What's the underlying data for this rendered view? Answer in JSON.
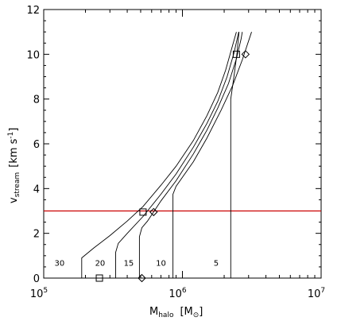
{
  "chart_data": {
    "type": "line",
    "x_scale": "log",
    "xlim": [
      100000,
      10000000
    ],
    "ylim": [
      0,
      12
    ],
    "xlabel": {
      "main": "M",
      "sub": "halo",
      "unit_open": "[M",
      "unit_sub": "⊙",
      "unit_close": "]"
    },
    "ylabel": {
      "main": "v",
      "sub": "stream",
      "unit": "[km s",
      "unit_sup": "-1",
      "unit_close": "]"
    },
    "x_ticks": [
      {
        "value": 100000,
        "base": "10",
        "exp": "5"
      },
      {
        "value": 1000000,
        "base": "10",
        "exp": "6"
      },
      {
        "value": 10000000,
        "base": "10",
        "exp": "7"
      }
    ],
    "y_ticks": [
      {
        "value": 0,
        "label": "0"
      },
      {
        "value": 2,
        "label": "2"
      },
      {
        "value": 4,
        "label": "4"
      },
      {
        "value": 6,
        "label": "6"
      },
      {
        "value": 8,
        "label": "8"
      },
      {
        "value": 10,
        "label": "10"
      },
      {
        "value": 12,
        "label": "12"
      }
    ],
    "series": [
      {
        "name": "30",
        "label_at": [
          130000,
          0.7
        ],
        "points": [
          [
            188000,
            0
          ],
          [
            188000,
            0.9
          ],
          [
            230000,
            1.35
          ],
          [
            300000,
            1.9
          ],
          [
            400000,
            2.55
          ],
          [
            520000,
            3.2
          ],
          [
            700000,
            4.15
          ],
          [
            900000,
            5.0
          ],
          [
            1200000,
            6.15
          ],
          [
            1500000,
            7.25
          ],
          [
            1800000,
            8.3
          ],
          [
            2050000,
            9.3
          ],
          [
            2300000,
            10.4
          ],
          [
            2450000,
            11.0
          ]
        ]
      },
      {
        "name": "20",
        "label_at": [
          255000,
          0.7
        ],
        "points": [
          [
            330000,
            0
          ],
          [
            330000,
            1.15
          ],
          [
            345000,
            1.55
          ],
          [
            400000,
            2.0
          ],
          [
            520000,
            2.75
          ],
          [
            700000,
            3.75
          ],
          [
            900000,
            4.65
          ],
          [
            1200000,
            5.85
          ],
          [
            1500000,
            6.9
          ],
          [
            1800000,
            7.9
          ],
          [
            2100000,
            9.0
          ],
          [
            2350000,
            10.05
          ],
          [
            2550000,
            11.0
          ]
        ]
      },
      {
        "name": "15",
        "label_at": [
          410000,
          0.7
        ],
        "points": [
          [
            490000,
            0
          ],
          [
            490000,
            1.85
          ],
          [
            510000,
            2.25
          ],
          [
            560000,
            2.55
          ],
          [
            700000,
            3.45
          ],
          [
            900000,
            4.35
          ],
          [
            1200000,
            5.55
          ],
          [
            1500000,
            6.6
          ],
          [
            1800000,
            7.6
          ],
          [
            2150000,
            8.7
          ],
          [
            2450000,
            9.8
          ],
          [
            2650000,
            10.7
          ],
          [
            2700000,
            11.0
          ]
        ]
      },
      {
        "name": "10",
        "label_at": [
          700000,
          0.7
        ],
        "points": [
          [
            855000,
            0
          ],
          [
            855000,
            3.75
          ],
          [
            900000,
            4.1
          ],
          [
            1200000,
            5.2
          ],
          [
            1500000,
            6.25
          ],
          [
            1900000,
            7.5
          ],
          [
            2300000,
            8.6
          ],
          [
            2700000,
            9.75
          ],
          [
            3150000,
            11.0
          ]
        ]
      },
      {
        "name": "5",
        "label_at": [
          1750000,
          0.7
        ],
        "points": [
          [
            2230000,
            0
          ],
          [
            2230000,
            8.0
          ],
          [
            2350000,
            9.0
          ],
          [
            2470000,
            10.0
          ],
          [
            2560000,
            11.0
          ]
        ]
      }
    ],
    "reference_line": {
      "y": 3.0,
      "color": "#cc0000"
    },
    "markers": [
      {
        "shape": "square",
        "x": 252000,
        "y": 0
      },
      {
        "shape": "diamond",
        "x": 510000,
        "y": 0
      },
      {
        "shape": "square",
        "x": 520000,
        "y": 2.95
      },
      {
        "shape": "diamond",
        "x": 620000,
        "y": 2.95
      },
      {
        "shape": "square",
        "x": 2450000,
        "y": 10.0
      },
      {
        "shape": "diamond",
        "x": 2850000,
        "y": 10.0
      }
    ],
    "grid": false,
    "legend": "none"
  }
}
